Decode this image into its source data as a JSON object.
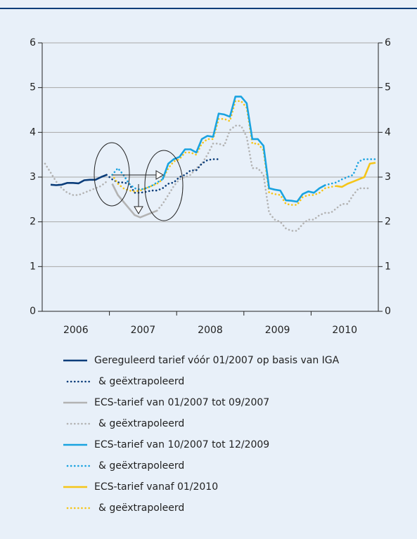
{
  "chart_data": {
    "type": "line",
    "x": [
      2006.042,
      2006.125,
      2006.208,
      2006.292,
      2006.375,
      2006.458,
      2006.542,
      2006.625,
      2006.708,
      2006.792,
      2006.875,
      2006.958,
      2007.042,
      2007.125,
      2007.208,
      2007.292,
      2007.375,
      2007.458,
      2007.542,
      2007.625,
      2007.708,
      2007.792,
      2007.875,
      2007.958,
      2008.042,
      2008.125,
      2008.208,
      2008.292,
      2008.375,
      2008.458,
      2008.542,
      2008.625,
      2008.708,
      2008.792,
      2008.875,
      2008.958,
      2009.042,
      2009.125,
      2009.208,
      2009.292,
      2009.375,
      2009.458,
      2009.542,
      2009.625,
      2009.708,
      2009.792,
      2009.875,
      2009.958,
      2010.042,
      2010.125,
      2010.208,
      2010.292,
      2010.375,
      2010.458,
      2010.542,
      2010.625,
      2010.708,
      2010.792,
      2010.875,
      2010.958
    ],
    "xlim": [
      2006,
      2011
    ],
    "xticks": [
      {
        "value": 2006.5,
        "label": "2006"
      },
      {
        "value": 2007.5,
        "label": "2007"
      },
      {
        "value": 2008.5,
        "label": "2008"
      },
      {
        "value": 2009.5,
        "label": "2009"
      },
      {
        "value": 2010.5,
        "label": "2010"
      }
    ],
    "xtick_marks": [
      2007,
      2008,
      2009,
      2010
    ],
    "ylim": [
      0,
      6
    ],
    "yticks": [
      0,
      1,
      2,
      3,
      4,
      5,
      6
    ],
    "grid": true,
    "series": [
      {
        "name": "Gereguleerd tarief vóór 01/2007 op basis van IGA",
        "color": "#0b3d7a",
        "dash": "solid",
        "values": [
          null,
          2.83,
          2.82,
          2.83,
          2.87,
          2.87,
          2.86,
          2.93,
          2.94,
          2.94,
          3.0,
          3.05,
          null,
          null,
          null,
          null,
          null,
          null,
          null,
          null,
          null,
          null,
          null,
          null,
          null,
          null,
          null,
          null,
          null,
          null,
          null,
          null,
          null,
          null,
          null,
          null,
          null,
          null,
          null,
          null,
          null,
          null,
          null,
          null,
          null,
          null,
          null,
          null,
          null,
          null,
          null,
          null,
          null,
          null,
          null,
          null,
          null,
          null,
          null,
          null
        ]
      },
      {
        "name": "& geëxtrapoleerd",
        "color": "#0b3d7a",
        "dash": "dotted",
        "values": [
          null,
          null,
          null,
          null,
          null,
          null,
          null,
          null,
          null,
          null,
          null,
          3.05,
          2.95,
          2.88,
          2.88,
          2.85,
          2.65,
          2.65,
          2.67,
          2.7,
          2.7,
          2.75,
          2.85,
          2.88,
          3.0,
          3.05,
          3.15,
          3.15,
          3.3,
          3.38,
          3.4,
          3.4,
          null,
          null,
          null,
          null,
          null,
          null,
          null,
          null,
          null,
          null,
          null,
          null,
          null,
          null,
          null,
          null,
          null,
          null,
          null,
          null,
          null,
          null,
          null,
          null,
          null,
          null,
          null,
          null
        ]
      },
      {
        "name": "ECS-tarief van 01/2007 tot 09/2007",
        "color": "#b3b3b3",
        "dash": "solid",
        "values": [
          null,
          null,
          null,
          null,
          null,
          null,
          null,
          null,
          null,
          null,
          null,
          null,
          2.85,
          2.6,
          2.45,
          2.3,
          2.15,
          2.1,
          2.15,
          2.2,
          2.25,
          null,
          null,
          null,
          null,
          null,
          null,
          null,
          null,
          null,
          null,
          null,
          null,
          null,
          null,
          null,
          null,
          null,
          null,
          null,
          null,
          null,
          null,
          null,
          null,
          null,
          null,
          null,
          null,
          null,
          null,
          null,
          null,
          null,
          null,
          null,
          null,
          null,
          null,
          null
        ]
      },
      {
        "name": "& geëxtrapoleerd",
        "color": "#b3b3b3",
        "dash": "dotted",
        "values": [
          3.3,
          3.1,
          2.9,
          2.75,
          2.65,
          2.6,
          2.6,
          2.65,
          2.7,
          2.75,
          2.8,
          2.9,
          null,
          null,
          null,
          null,
          null,
          null,
          null,
          null,
          2.25,
          2.4,
          2.6,
          2.8,
          2.95,
          3.0,
          3.05,
          3.2,
          3.3,
          3.5,
          3.75,
          3.75,
          3.7,
          4.05,
          4.15,
          4.15,
          3.9,
          3.2,
          3.2,
          3.05,
          2.2,
          2.05,
          2.0,
          1.85,
          1.8,
          1.8,
          1.95,
          2.05,
          2.05,
          2.15,
          2.2,
          2.2,
          2.3,
          2.4,
          2.4,
          2.6,
          2.75,
          2.75,
          2.75,
          null
        ]
      },
      {
        "name": "ECS-tarief van 10/2007 tot 12/2009",
        "color": "#1aa3e0",
        "dash": "solid",
        "values": [
          null,
          null,
          null,
          null,
          null,
          null,
          null,
          null,
          null,
          null,
          null,
          null,
          null,
          null,
          null,
          null,
          null,
          null,
          null,
          null,
          null,
          2.95,
          3.3,
          3.4,
          3.45,
          3.62,
          3.62,
          3.55,
          3.85,
          3.92,
          3.9,
          4.42,
          4.4,
          4.35,
          4.8,
          4.8,
          4.65,
          3.85,
          3.85,
          3.7,
          2.75,
          2.72,
          2.7,
          2.48,
          2.47,
          2.45,
          2.62,
          2.68,
          2.65,
          2.75,
          2.82,
          null,
          null,
          null,
          null,
          null,
          null,
          null,
          null,
          null
        ]
      },
      {
        "name": "& geëxtrapoleerd",
        "color": "#1aa3e0",
        "dash": "dotted",
        "values": [
          null,
          null,
          null,
          null,
          null,
          null,
          null,
          null,
          null,
          null,
          null,
          null,
          3.05,
          3.2,
          3.05,
          2.85,
          2.75,
          2.72,
          2.75,
          2.8,
          2.88,
          2.95,
          null,
          null,
          null,
          null,
          null,
          null,
          null,
          null,
          null,
          null,
          null,
          null,
          null,
          null,
          null,
          null,
          null,
          null,
          null,
          null,
          null,
          null,
          null,
          null,
          null,
          null,
          null,
          null,
          2.82,
          2.85,
          2.88,
          2.95,
          3.0,
          3.05,
          3.35,
          3.4,
          3.4,
          3.4
        ]
      },
      {
        "name": "ECS-tarief vanaf 01/2010",
        "color": "#f5c518",
        "dash": "solid",
        "values": [
          null,
          null,
          null,
          null,
          null,
          null,
          null,
          null,
          null,
          null,
          null,
          null,
          null,
          null,
          null,
          null,
          null,
          null,
          null,
          null,
          null,
          null,
          null,
          null,
          null,
          null,
          null,
          null,
          null,
          null,
          null,
          null,
          null,
          null,
          null,
          null,
          null,
          null,
          null,
          null,
          null,
          null,
          null,
          null,
          null,
          null,
          null,
          null,
          null,
          null,
          null,
          null,
          2.8,
          2.78,
          2.85,
          2.9,
          2.95,
          3.0,
          3.3,
          3.32
        ]
      },
      {
        "name": "& geëxtrapoleerd",
        "color": "#f5c518",
        "dash": "dotted",
        "values": [
          null,
          null,
          null,
          null,
          null,
          null,
          null,
          null,
          null,
          null,
          null,
          null,
          3.05,
          2.85,
          2.75,
          2.7,
          2.68,
          2.7,
          2.75,
          2.8,
          2.85,
          2.95,
          3.2,
          3.35,
          3.4,
          3.55,
          3.55,
          3.5,
          3.75,
          3.85,
          3.85,
          4.3,
          4.3,
          4.25,
          4.7,
          4.7,
          4.55,
          3.75,
          3.75,
          3.6,
          2.65,
          2.62,
          2.6,
          2.4,
          2.38,
          2.38,
          2.55,
          2.6,
          2.6,
          2.65,
          2.75,
          2.78,
          2.8,
          null,
          null,
          null,
          null,
          null,
          null,
          null
        ]
      }
    ]
  }
}
